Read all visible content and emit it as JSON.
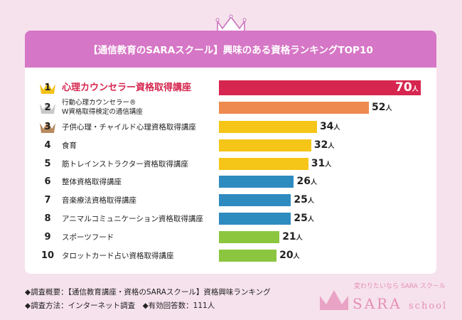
{
  "title": "【通信教育のSARAスクール】興味のある資格ランキングTOP10",
  "colors": {
    "header": "#d676c6",
    "background": "#f6e2ec",
    "rank1": "#d6264f",
    "rank2": "#ee8a4f",
    "yellow": "#f5c518",
    "blue": "#2e8bc0",
    "green": "#8cc63f"
  },
  "chart_data": {
    "type": "bar",
    "orientation": "horizontal",
    "unit": "人",
    "categories": [
      "心理カウンセラー資格取得講座",
      "行動心理カウンセラー® W資格取得検定の通信講座",
      "子供心理・チャイルド心理資格取得講座",
      "食育",
      "筋トレインストラクター資格取得講座",
      "整体資格取得講座",
      "音楽療法資格取得講座",
      "アニマルコミュニケーション資格取得講座",
      "スポーツフード",
      "タロットカード占い資格取得講座"
    ],
    "label_lines": [
      [
        "心理カウンセラー資格取得講座"
      ],
      [
        "行動心理カウンセラー®",
        "W資格取得検定の通信講座"
      ],
      [
        "子供心理・チャイルド心理資格取得講座"
      ],
      [
        "食育"
      ],
      [
        "筋トレインストラクター資格取得講座"
      ],
      [
        "整体資格取得講座"
      ],
      [
        "音楽療法資格取得講座"
      ],
      [
        "アニマルコミュニケーション資格取得講座"
      ],
      [
        "スポーツフード"
      ],
      [
        "タロットカード占い資格取得講座"
      ]
    ],
    "ranks": [
      "1",
      "2",
      "3",
      "4",
      "5",
      "6",
      "7",
      "8",
      "9",
      "10"
    ],
    "values": [
      70,
      52,
      34,
      32,
      31,
      26,
      25,
      25,
      21,
      20
    ],
    "bar_colors": [
      "#d6264f",
      "#ee8a4f",
      "#f5c518",
      "#f5c518",
      "#f5c518",
      "#2e8bc0",
      "#2e8bc0",
      "#2e8bc0",
      "#8cc63f",
      "#8cc63f"
    ],
    "rank_icons": [
      "gold-crown",
      "silver-crown",
      "bronze-crown"
    ]
  },
  "footer": {
    "line1": "◆調査概要：【通信教育講座・資格のSARAスクール】資格興味ランキング",
    "line2": "◆調査方法：インターネット調査　◆有効回答数：111人"
  },
  "logo": {
    "tagline": "変わりたいなら SARA スクール",
    "name": "SARA",
    "suffix": "school"
  }
}
